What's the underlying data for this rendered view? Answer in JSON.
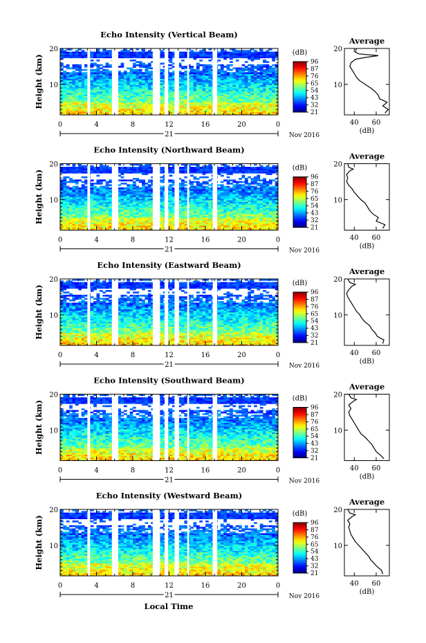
{
  "figure": {
    "xlabel": "Local Time",
    "date_label": "Nov 2016",
    "day_label": "21",
    "ylabel": "Height (km)",
    "colorbar_unit": "(dB)",
    "avg_title": "Average",
    "avg_xlabel": "(dB)"
  },
  "chart_data": [
    {
      "type": "heatmap",
      "title": "Echo Intensity (Vertical Beam)",
      "xlabel": "Local Time",
      "ylabel": "Height (km)",
      "xlim": [
        0,
        24
      ],
      "ylim": [
        1.5,
        20
      ],
      "xticks": [
        "0",
        "4",
        "8",
        "12",
        "16",
        "20",
        "0"
      ],
      "yticks": [
        "10",
        "20"
      ],
      "colorbar": {
        "label": "(dB)",
        "range": [
          21,
          96
        ],
        "ticks": [
          "96",
          "87",
          "76",
          "65",
          "54",
          "43",
          "32",
          "21"
        ]
      },
      "data_gaps_hours": [
        [
          3.0,
          3.3
        ],
        [
          5.7,
          6.4
        ],
        [
          10.2,
          11.0
        ],
        [
          11.5,
          11.9
        ],
        [
          12.6,
          13.1
        ],
        [
          14.0,
          14.2
        ],
        [
          16.8,
          17.3
        ]
      ],
      "profile": {
        "title": "Average",
        "xlabel": "(dB)",
        "xticks": [
          "40",
          "60"
        ],
        "xlim": [
          31,
          72
        ],
        "yticks": [
          "10",
          "20"
        ],
        "height_km": [
          2,
          3,
          4,
          5,
          6,
          7,
          8,
          9,
          10,
          11,
          12,
          13,
          14,
          15,
          16,
          17,
          17.5,
          18,
          18.5,
          19,
          20
        ],
        "db": [
          68,
          71,
          66,
          70,
          63,
          62,
          59,
          55,
          50,
          45,
          42,
          40,
          38,
          36,
          37,
          41,
          50,
          62,
          44,
          41,
          42
        ]
      }
    },
    {
      "type": "heatmap",
      "title": "Echo Intensity (Northward Beam)",
      "xlabel": "Local Time",
      "ylabel": "Height (km)",
      "xlim": [
        0,
        24
      ],
      "ylim": [
        1.5,
        20
      ],
      "xticks": [
        "0",
        "4",
        "8",
        "12",
        "16",
        "20",
        "0"
      ],
      "yticks": [
        "10",
        "20"
      ],
      "colorbar": {
        "label": "(dB)",
        "range": [
          21,
          96
        ],
        "ticks": [
          "96",
          "87",
          "76",
          "65",
          "54",
          "43",
          "32",
          "21"
        ]
      },
      "data_gaps_hours": [
        [
          3.0,
          3.3
        ],
        [
          5.7,
          6.4
        ],
        [
          10.2,
          11.0
        ],
        [
          11.5,
          11.9
        ],
        [
          12.6,
          13.1
        ],
        [
          14.0,
          14.2
        ],
        [
          16.8,
          17.3
        ]
      ],
      "profile": {
        "title": "Average",
        "xlabel": "(dB)",
        "xticks": [
          "40",
          "60"
        ],
        "xlim": [
          31,
          72
        ],
        "yticks": [
          "10",
          "20"
        ],
        "height_km": [
          2,
          3,
          4,
          5,
          6,
          7,
          8,
          9,
          10,
          11,
          12,
          13,
          14,
          15,
          16,
          17,
          18,
          18.5,
          19,
          20
        ],
        "db": [
          66,
          68,
          60,
          62,
          57,
          54,
          52,
          50,
          46,
          43,
          40,
          38,
          35,
          33,
          34,
          33,
          36,
          39,
          35,
          34
        ]
      }
    },
    {
      "type": "heatmap",
      "title": "Echo Intensity (Eastward Beam)",
      "xlabel": "Local Time",
      "ylabel": "Height (km)",
      "xlim": [
        0,
        24
      ],
      "ylim": [
        1.5,
        20
      ],
      "xticks": [
        "0",
        "4",
        "8",
        "12",
        "16",
        "20",
        "0"
      ],
      "yticks": [
        "10",
        "20"
      ],
      "colorbar": {
        "label": "(dB)",
        "range": [
          21,
          96
        ],
        "ticks": [
          "96",
          "87",
          "76",
          "65",
          "54",
          "43",
          "32",
          "21"
        ]
      },
      "data_gaps_hours": [
        [
          3.0,
          3.3
        ],
        [
          5.7,
          6.4
        ],
        [
          10.2,
          11.0
        ],
        [
          11.5,
          11.9
        ],
        [
          12.6,
          13.1
        ],
        [
          14.0,
          14.2
        ],
        [
          16.8,
          17.3
        ]
      ],
      "profile": {
        "title": "Average",
        "xlabel": "(dB)",
        "xticks": [
          "40",
          "60"
        ],
        "xlim": [
          31,
          72
        ],
        "yticks": [
          "10",
          "20"
        ],
        "height_km": [
          2,
          3,
          4,
          5,
          6,
          7,
          8,
          9,
          10,
          11,
          12,
          13,
          14,
          15,
          16,
          17,
          18,
          18.5,
          19,
          20
        ],
        "db": [
          66,
          67,
          61,
          59,
          56,
          54,
          50,
          47,
          45,
          42,
          40,
          38,
          36,
          34,
          33,
          35,
          38,
          41,
          36,
          34
        ]
      }
    },
    {
      "type": "heatmap",
      "title": "Echo Intensity (Southward Beam)",
      "xlabel": "Local Time",
      "ylabel": "Height (km)",
      "xlim": [
        0,
        24
      ],
      "ylim": [
        1.5,
        20
      ],
      "xticks": [
        "0",
        "4",
        "8",
        "12",
        "16",
        "20",
        "0"
      ],
      "yticks": [
        "10",
        "20"
      ],
      "colorbar": {
        "label": "(dB)",
        "range": [
          21,
          96
        ],
        "ticks": [
          "96",
          "87",
          "76",
          "65",
          "54",
          "43",
          "32",
          "21"
        ]
      },
      "data_gaps_hours": [
        [
          3.0,
          3.3
        ],
        [
          5.7,
          6.4
        ],
        [
          10.2,
          11.0
        ],
        [
          11.5,
          11.9
        ],
        [
          12.6,
          13.1
        ],
        [
          14.0,
          14.2
        ],
        [
          16.8,
          17.3
        ]
      ],
      "profile": {
        "title": "Average",
        "xlabel": "(dB)",
        "xticks": [
          "40",
          "60"
        ],
        "xlim": [
          31,
          72
        ],
        "yticks": [
          "10",
          "20"
        ],
        "height_km": [
          2,
          3,
          4,
          5,
          6,
          7,
          8,
          9,
          10,
          11,
          12,
          13,
          14,
          15,
          16,
          17,
          18,
          18.5,
          19,
          20
        ],
        "db": [
          67,
          64,
          60,
          58,
          56,
          53,
          50,
          46,
          44,
          42,
          40,
          38,
          36,
          35,
          37,
          35,
          39,
          42,
          37,
          35
        ]
      }
    },
    {
      "type": "heatmap",
      "title": "Echo Intensity (Westward Beam)",
      "xlabel": "Local Time",
      "ylabel": "Height (km)",
      "xlim": [
        0,
        24
      ],
      "ylim": [
        1.5,
        20
      ],
      "xticks": [
        "0",
        "4",
        "8",
        "12",
        "16",
        "20",
        "0"
      ],
      "yticks": [
        "10",
        "20"
      ],
      "colorbar": {
        "label": "(dB)",
        "range": [
          21,
          96
        ],
        "ticks": [
          "96",
          "87",
          "76",
          "65",
          "54",
          "43",
          "32",
          "21"
        ]
      },
      "data_gaps_hours": [
        [
          3.0,
          3.3
        ],
        [
          5.7,
          6.4
        ],
        [
          10.2,
          11.0
        ],
        [
          11.5,
          11.9
        ],
        [
          12.6,
          13.1
        ],
        [
          14.0,
          14.2
        ],
        [
          16.8,
          17.3
        ]
      ],
      "profile": {
        "title": "Average",
        "xlabel": "(dB)",
        "xticks": [
          "40",
          "60"
        ],
        "xlim": [
          31,
          72
        ],
        "yticks": [
          "10",
          "20"
        ],
        "height_km": [
          2,
          3,
          4,
          5,
          6,
          7,
          8,
          9,
          10,
          11,
          12,
          13,
          14,
          15,
          16,
          17,
          18,
          18.5,
          19,
          20
        ],
        "db": [
          66,
          65,
          61,
          58,
          55,
          53,
          50,
          47,
          44,
          41,
          39,
          37,
          36,
          35,
          36,
          34,
          38,
          41,
          36,
          34
        ]
      }
    }
  ]
}
